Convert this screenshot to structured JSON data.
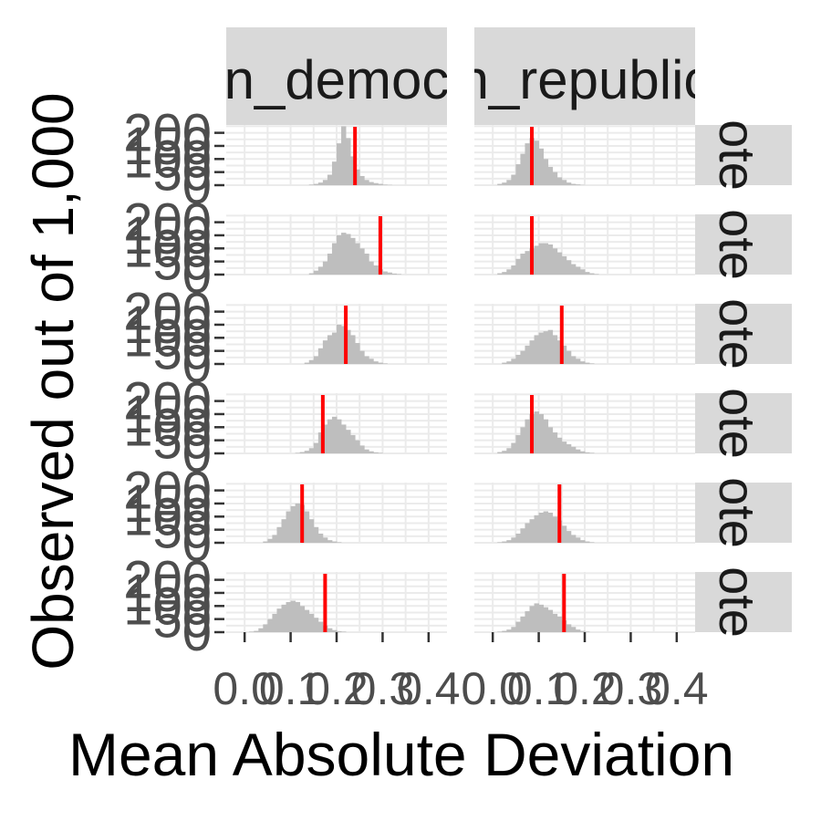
{
  "chart_data": {
    "type": "histogram-facet-grid",
    "xlabel": "Mean Absolute Deviation",
    "ylabel": "Observed out of 1,000",
    "column_strips": [
      "n_democ",
      "n_republic"
    ],
    "row_strip_label": "ote",
    "x_tick_labels": [
      "0.0",
      "0.1",
      "0.2",
      "0.3",
      "0.4"
    ],
    "x_tick_values": [
      0.0,
      0.1,
      0.2,
      0.3,
      0.4
    ],
    "y_tick_labels": [
      "0",
      "50",
      "100",
      "150",
      "200"
    ],
    "y_tick_values": [
      0,
      50,
      100,
      150,
      200
    ],
    "xlim": [
      -0.04,
      0.44
    ],
    "ylim": [
      0,
      230
    ],
    "bin_start": 0.0,
    "bin_width": 0.01,
    "colors": {
      "bar": "#bebebe",
      "observed_line": "#ff0000",
      "panel_bg": "#ffffff",
      "grid": "#ebebeb",
      "strip_bg": "#d9d9d9"
    },
    "panels": [
      {
        "row": 0,
        "col": 0,
        "observed": 0.24,
        "counts": [
          0,
          0,
          0,
          0,
          0,
          0,
          0,
          0,
          0,
          0,
          0,
          0,
          0,
          0,
          2,
          5,
          10,
          20,
          40,
          90,
          160,
          225,
          180,
          110,
          60,
          35,
          20,
          12,
          8,
          5,
          2,
          1,
          0,
          0,
          0,
          0,
          0,
          0,
          0,
          0,
          0
        ]
      },
      {
        "row": 0,
        "col": 1,
        "observed": 0.085,
        "counts": [
          0,
          5,
          10,
          20,
          40,
          80,
          120,
          160,
          180,
          170,
          140,
          100,
          70,
          50,
          30,
          20,
          10,
          5,
          3,
          1,
          0,
          0,
          0,
          0,
          0,
          0,
          0,
          0,
          0,
          0,
          0,
          0,
          0,
          0,
          0,
          0,
          0,
          0,
          0,
          0,
          0
        ]
      },
      {
        "row": 1,
        "col": 0,
        "observed": 0.295,
        "counts": [
          0,
          0,
          0,
          0,
          0,
          0,
          0,
          0,
          0,
          0,
          0,
          0,
          0,
          0,
          5,
          15,
          30,
          50,
          80,
          120,
          150,
          160,
          155,
          140,
          120,
          100,
          80,
          50,
          35,
          20,
          12,
          8,
          4,
          2,
          0,
          0,
          0,
          0,
          0,
          0,
          0
        ]
      },
      {
        "row": 1,
        "col": 1,
        "observed": 0.085,
        "counts": [
          0,
          5,
          10,
          20,
          35,
          60,
          80,
          90,
          100,
          110,
          120,
          120,
          115,
          100,
          85,
          70,
          55,
          40,
          30,
          20,
          10,
          5,
          2,
          0,
          0,
          0,
          0,
          0,
          0,
          0,
          0,
          0,
          0,
          0,
          0,
          0,
          0,
          0,
          0,
          0,
          0
        ]
      },
      {
        "row": 2,
        "col": 0,
        "observed": 0.22,
        "counts": [
          0,
          0,
          0,
          0,
          0,
          0,
          0,
          0,
          0,
          0,
          0,
          0,
          0,
          5,
          15,
          30,
          60,
          90,
          110,
          120,
          150,
          145,
          130,
          110,
          80,
          50,
          30,
          20,
          10,
          5,
          2,
          0,
          0,
          0,
          0,
          0,
          0,
          0,
          0,
          0,
          0
        ]
      },
      {
        "row": 2,
        "col": 1,
        "observed": 0.15,
        "counts": [
          0,
          0,
          5,
          10,
          20,
          35,
          50,
          70,
          90,
          110,
          120,
          125,
          130,
          110,
          90,
          70,
          50,
          30,
          20,
          10,
          5,
          2,
          0,
          0,
          0,
          0,
          0,
          0,
          0,
          0,
          0,
          0,
          0,
          0,
          0,
          0,
          0,
          0,
          0,
          0,
          0
        ]
      },
      {
        "row": 3,
        "col": 0,
        "observed": 0.17,
        "counts": [
          0,
          0,
          0,
          0,
          0,
          0,
          0,
          0,
          0,
          0,
          0,
          2,
          5,
          10,
          20,
          40,
          80,
          110,
          130,
          140,
          130,
          110,
          90,
          70,
          50,
          30,
          15,
          8,
          4,
          2,
          0,
          0,
          0,
          0,
          0,
          0,
          0,
          0,
          0,
          0,
          0
        ]
      },
      {
        "row": 3,
        "col": 1,
        "observed": 0.085,
        "counts": [
          0,
          5,
          10,
          20,
          40,
          70,
          100,
          130,
          150,
          160,
          150,
          130,
          100,
          80,
          60,
          45,
          35,
          25,
          15,
          8,
          4,
          2,
          0,
          0,
          0,
          0,
          0,
          0,
          0,
          0,
          0,
          0,
          0,
          0,
          0,
          0,
          0,
          0,
          0,
          0,
          0
        ]
      },
      {
        "row": 4,
        "col": 0,
        "observed": 0.125,
        "counts": [
          0,
          0,
          0,
          0,
          5,
          15,
          30,
          60,
          90,
          120,
          140,
          150,
          145,
          120,
          90,
          60,
          35,
          20,
          10,
          5,
          2,
          0,
          0,
          0,
          0,
          0,
          0,
          0,
          0,
          0,
          0,
          0,
          0,
          0,
          0,
          0,
          0,
          0,
          0,
          0,
          0
        ]
      },
      {
        "row": 4,
        "col": 1,
        "observed": 0.145,
        "counts": [
          0,
          2,
          5,
          10,
          20,
          35,
          55,
          75,
          90,
          105,
          115,
          120,
          115,
          100,
          85,
          65,
          45,
          30,
          20,
          10,
          5,
          2,
          0,
          0,
          0,
          0,
          0,
          0,
          0,
          0,
          0,
          0,
          0,
          0,
          0,
          0,
          0,
          0,
          0,
          0,
          0
        ]
      },
      {
        "row": 5,
        "col": 0,
        "observed": 0.175,
        "counts": [
          0,
          2,
          5,
          15,
          30,
          50,
          70,
          90,
          105,
          115,
          120,
          115,
          100,
          85,
          70,
          55,
          40,
          25,
          15,
          8,
          4,
          2,
          0,
          0,
          0,
          0,
          0,
          0,
          0,
          0,
          0,
          0,
          0,
          0,
          0,
          0,
          0,
          0,
          0,
          0,
          0
        ]
      },
      {
        "row": 5,
        "col": 1,
        "observed": 0.155,
        "counts": [
          0,
          2,
          5,
          10,
          20,
          40,
          60,
          80,
          100,
          110,
          105,
          95,
          85,
          70,
          60,
          45,
          30,
          20,
          10,
          5,
          2,
          0,
          0,
          0,
          0,
          0,
          0,
          0,
          0,
          0,
          0,
          0,
          0,
          0,
          0,
          0,
          0,
          0,
          0,
          0,
          0
        ]
      }
    ]
  }
}
